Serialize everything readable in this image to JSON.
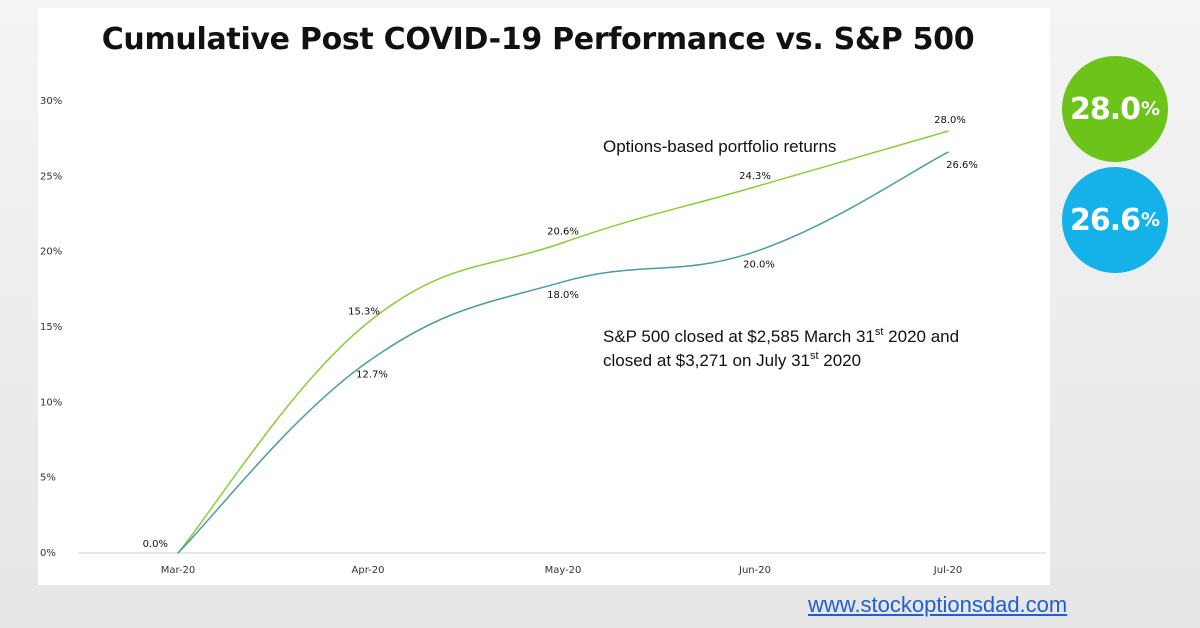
{
  "chart_data": {
    "type": "line",
    "title": "Cumulative Post COVID-19 Performance vs. S&P 500",
    "categories": [
      "Mar-20",
      "Apr-20",
      "May-20",
      "Jun-20",
      "Jul-20"
    ],
    "ylim": [
      0,
      30
    ],
    "yticks": [
      "0%",
      "5%",
      "10%",
      "15%",
      "20%",
      "25%",
      "30%"
    ],
    "grid": false,
    "series": [
      {
        "name": "Options-based portfolio returns",
        "values": [
          0.0,
          15.3,
          20.6,
          24.3,
          28.0
        ],
        "labels": [
          "0.0%",
          "15.3%",
          "20.6%",
          "24.3%",
          "28.0%"
        ],
        "color": "#8ccc3c"
      },
      {
        "values": [
          0.0,
          12.7,
          18.0,
          20.0,
          26.6
        ],
        "labels": [
          "",
          "12.7%",
          "18.0%",
          "20.0%",
          "26.6%"
        ],
        "color": "#4f9c9e"
      }
    ],
    "annotations": [
      {
        "lines": [
          {
            "parts": [
              "S&P 500 closed at $2,585 March 31",
              "st",
              " 2020 and"
            ]
          },
          {
            "parts": [
              "closed at $3,271 on July 31",
              "st",
              " 2020"
            ]
          }
        ]
      }
    ]
  },
  "badges": [
    {
      "value": "28.0",
      "unit": "%",
      "color": "#6cc319"
    },
    {
      "value": "26.6",
      "unit": "%",
      "color": "#15b2ea"
    }
  ],
  "footer": {
    "website": "www.stockoptionsdad.com"
  }
}
